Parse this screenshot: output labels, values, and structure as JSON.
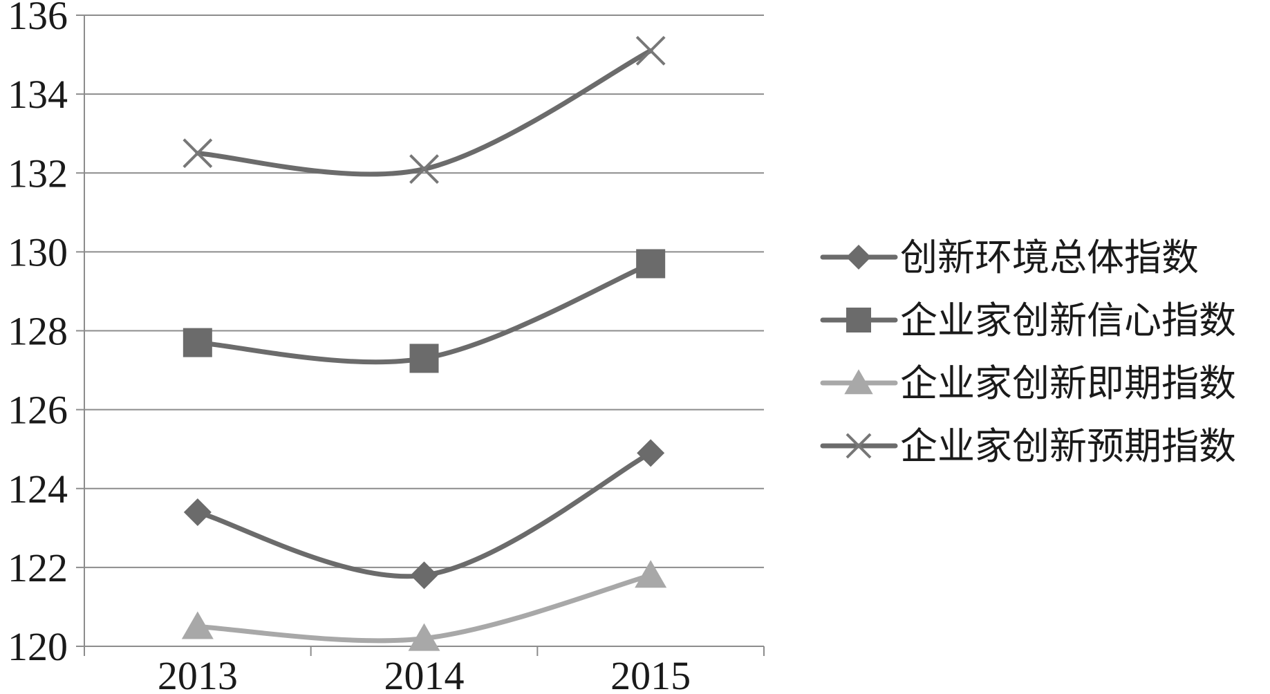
{
  "chart_data": {
    "type": "line",
    "categories": [
      "2013",
      "2014",
      "2015"
    ],
    "ylim": [
      120,
      136
    ],
    "yticks": [
      "120",
      "122",
      "124",
      "126",
      "128",
      "130",
      "132",
      "134",
      "136"
    ],
    "grid": true,
    "smooth": true,
    "legend_position": "right",
    "series": [
      {
        "name": "创新环境总体指数",
        "values": [
          123.4,
          121.8,
          124.9
        ],
        "color": "#6b6b6b",
        "marker": "diamond"
      },
      {
        "name": "企业家创新信心指数",
        "values": [
          127.7,
          127.3,
          129.7
        ],
        "color": "#6b6b6b",
        "marker": "square"
      },
      {
        "name": "企业家创新即期指数",
        "values": [
          120.5,
          120.2,
          121.8
        ],
        "color": "#a8a8a8",
        "marker": "triangle"
      },
      {
        "name": "企业家创新预期指数",
        "values": [
          132.5,
          132.1,
          135.1
        ],
        "color": "#6b6b6b",
        "marker": "x"
      }
    ]
  }
}
